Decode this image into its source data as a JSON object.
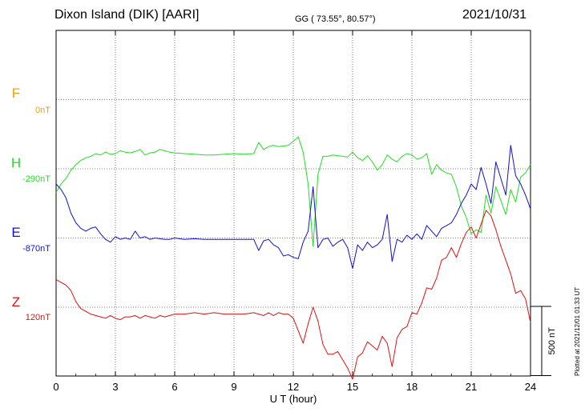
{
  "header": {
    "title": "Dixon Island (DIK)  [AARI]",
    "coords": "GG ( 73.55°,  80.57°)",
    "date": "2021/10/31"
  },
  "plotted_note": "Plotted at 2021/12/01 01:33 UT",
  "colors": {
    "F": "#f0a000",
    "H": "#22dd22",
    "E": "#1010d0",
    "Z": "#e01010",
    "grid": "#555555",
    "axis": "#000000"
  },
  "chart_data": {
    "type": "line",
    "title": "",
    "xlabel": "U T (hour)",
    "ylabel": "",
    "xlim": [
      0,
      24
    ],
    "x_ticks": [
      "0",
      "3",
      "6",
      "9",
      "12",
      "15",
      "18",
      "21",
      "24"
    ],
    "grid": true,
    "scale_bar": {
      "label": "500 nT",
      "value_nT": 500
    },
    "series": [
      {
        "name": "F",
        "baseline": "0nT",
        "color": "#f0a000",
        "x": [],
        "y": []
      },
      {
        "name": "H",
        "baseline": "-290nT",
        "color": "#22dd22",
        "x": [
          0,
          0.25,
          0.5,
          0.75,
          1,
          1.25,
          1.5,
          1.75,
          2,
          2.25,
          2.5,
          2.75,
          3,
          3.25,
          3.5,
          3.75,
          4,
          4.25,
          4.5,
          4.75,
          5,
          5.25,
          5.5,
          5.75,
          6,
          6.5,
          7,
          7.5,
          8,
          8.5,
          9,
          9.5,
          10,
          10.25,
          10.5,
          10.75,
          11,
          11.25,
          11.5,
          11.75,
          12,
          12.25,
          12.5,
          12.75,
          13,
          13.25,
          13.5,
          13.75,
          14,
          14.25,
          14.5,
          14.75,
          15,
          15.25,
          15.5,
          15.75,
          16,
          16.25,
          16.5,
          16.75,
          17,
          17.25,
          17.5,
          17.75,
          18,
          18.25,
          18.5,
          18.75,
          19,
          19.25,
          19.5,
          19.75,
          20,
          20.25,
          20.5,
          20.75,
          21,
          21.25,
          21.5,
          21.75,
          22,
          22.25,
          22.5,
          22.75,
          23,
          23.25,
          23.5,
          23.75,
          24
        ],
        "y": [
          -460,
          -400,
          -360,
          -300,
          -260,
          -230,
          -210,
          -200,
          -180,
          -190,
          -170,
          -185,
          -180,
          -160,
          -170,
          -175,
          -165,
          -150,
          -190,
          -175,
          -170,
          -150,
          -160,
          -170,
          -175,
          -180,
          -185,
          -190,
          -190,
          -185,
          -180,
          -185,
          -180,
          -100,
          -150,
          -130,
          -120,
          -130,
          -125,
          -120,
          -90,
          -60,
          -170,
          -400,
          -850,
          -330,
          -200,
          -200,
          -190,
          -195,
          -200,
          -205,
          -170,
          -210,
          -230,
          -195,
          -240,
          -300,
          -260,
          -190,
          -220,
          -240,
          -200,
          -180,
          -190,
          -220,
          -210,
          -180,
          -330,
          -260,
          -300,
          -320,
          -330,
          -420,
          -560,
          -640,
          -760,
          -730,
          -750,
          -480,
          -610,
          -420,
          -520,
          -620,
          -440,
          -530,
          -350,
          -320,
          -260
        ]
      },
      {
        "name": "E",
        "baseline": "-870nT",
        "color": "#1010d0",
        "x": [
          0,
          0.25,
          0.5,
          0.75,
          1,
          1.25,
          1.5,
          1.75,
          2,
          2.25,
          2.5,
          2.75,
          3,
          3.25,
          3.5,
          3.75,
          4,
          4.25,
          4.5,
          4.75,
          5,
          5.25,
          5.5,
          5.75,
          6,
          6.5,
          7,
          7.5,
          8,
          8.5,
          9,
          9.5,
          10,
          10.25,
          10.5,
          10.75,
          11,
          11.25,
          11.5,
          11.75,
          12,
          12.25,
          12.5,
          12.75,
          13,
          13.25,
          13.5,
          13.75,
          14,
          14.25,
          14.5,
          14.75,
          15,
          15.25,
          15.5,
          15.75,
          16,
          16.25,
          16.5,
          16.75,
          17,
          17.25,
          17.5,
          17.75,
          18,
          18.25,
          18.5,
          18.75,
          19,
          19.25,
          19.5,
          19.75,
          20,
          20.25,
          20.5,
          20.75,
          21,
          21.25,
          21.5,
          21.75,
          22,
          22.25,
          22.5,
          22.75,
          23,
          23.25,
          23.5,
          23.75,
          24
        ],
        "y": [
          -480,
          -520,
          -580,
          -690,
          -760,
          -800,
          -820,
          -800,
          -790,
          -840,
          -880,
          -900,
          -860,
          -880,
          -870,
          -880,
          -820,
          -870,
          -860,
          -880,
          -870,
          -875,
          -880,
          -880,
          -870,
          -880,
          -875,
          -880,
          -880,
          -880,
          -880,
          -880,
          -880,
          -960,
          -890,
          -880,
          -920,
          -940,
          -1000,
          -990,
          -1010,
          -1020,
          -900,
          -820,
          -500,
          -940,
          -880,
          -870,
          -930,
          -900,
          -880,
          -940,
          -1090,
          -920,
          -960,
          -900,
          -940,
          -920,
          -880,
          -700,
          -1040,
          -880,
          -900,
          -850,
          -880,
          -840,
          -880,
          -780,
          -820,
          -860,
          -800,
          -780,
          -760,
          -700,
          -620,
          -560,
          -480,
          -520,
          -360,
          -480,
          -620,
          -320,
          -440,
          -560,
          -200,
          -420,
          -480,
          -560,
          -660
        ]
      },
      {
        "name": "Z",
        "baseline": "120nT",
        "color": "#e01010",
        "x": [
          0,
          0.25,
          0.5,
          0.75,
          1,
          1.25,
          1.5,
          1.75,
          2,
          2.25,
          2.5,
          2.75,
          3,
          3.25,
          3.5,
          3.75,
          4,
          4.25,
          4.5,
          4.75,
          5,
          5.25,
          5.5,
          5.75,
          6,
          6.5,
          7,
          7.5,
          8,
          8.5,
          9,
          9.5,
          10,
          10.25,
          10.5,
          10.75,
          11,
          11.25,
          11.5,
          11.75,
          12,
          12.25,
          12.5,
          12.75,
          13,
          13.25,
          13.5,
          13.75,
          14,
          14.25,
          14.5,
          14.75,
          15,
          15.25,
          15.5,
          15.75,
          16,
          16.25,
          16.5,
          16.75,
          17,
          17.25,
          17.5,
          17.75,
          18,
          18.25,
          18.5,
          18.75,
          19,
          19.25,
          19.5,
          19.75,
          20,
          20.25,
          20.5,
          20.75,
          21,
          21.25,
          21.5,
          21.75,
          22,
          22.25,
          22.5,
          22.75,
          23,
          23.25,
          23.5,
          23.75,
          24
        ],
        "y": [
          320,
          300,
          280,
          240,
          160,
          110,
          90,
          70,
          60,
          50,
          40,
          60,
          40,
          30,
          50,
          50,
          60,
          40,
          60,
          50,
          40,
          60,
          50,
          60,
          70,
          70,
          80,
          70,
          80,
          70,
          70,
          70,
          80,
          70,
          60,
          80,
          60,
          80,
          70,
          70,
          40,
          -50,
          -140,
          0,
          120,
          20,
          -150,
          -220,
          -220,
          -200,
          -260,
          -320,
          -400,
          -240,
          -210,
          -130,
          -160,
          -190,
          -90,
          -140,
          -310,
          -100,
          -40,
          -20,
          80,
          70,
          150,
          260,
          250,
          330,
          460,
          480,
          550,
          480,
          580,
          660,
          700,
          620,
          720,
          820,
          780,
          680,
          560,
          460,
          360,
          220,
          240,
          180,
          10
        ]
      }
    ]
  }
}
